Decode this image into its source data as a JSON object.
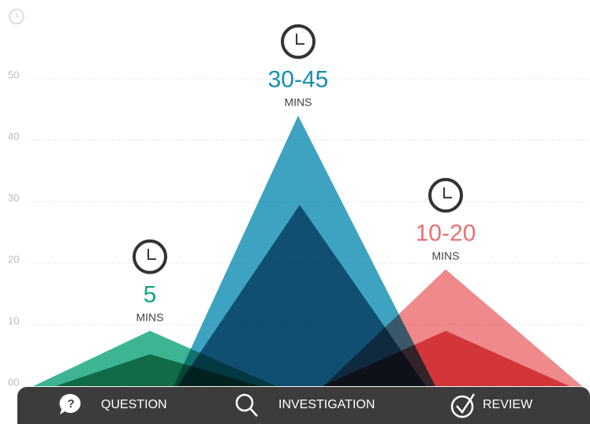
{
  "chart_data": {
    "type": "mountain",
    "categories": [
      "QUESTION",
      "INVESTIGATION",
      "REVIEW"
    ],
    "series": [
      {
        "color": [
          "#12a57c",
          "#148fb3",
          "#ec6f72"
        ],
        "values": [
          9,
          44,
          19
        ]
      },
      {
        "color": [
          "#0b7a52",
          "#0a5579",
          "#d8383b"
        ],
        "values": [
          5.2,
          29.5,
          9
        ]
      }
    ],
    "peak_labels": [
      "5",
      "30-45",
      "10-20"
    ],
    "unit_labels": [
      "MINS",
      "MINS",
      "MINS"
    ],
    "ylim": [
      0,
      50
    ],
    "yticks": [
      {
        "value": 0,
        "label": "00"
      },
      10,
      20,
      30,
      40,
      50
    ],
    "grid": true
  }
}
